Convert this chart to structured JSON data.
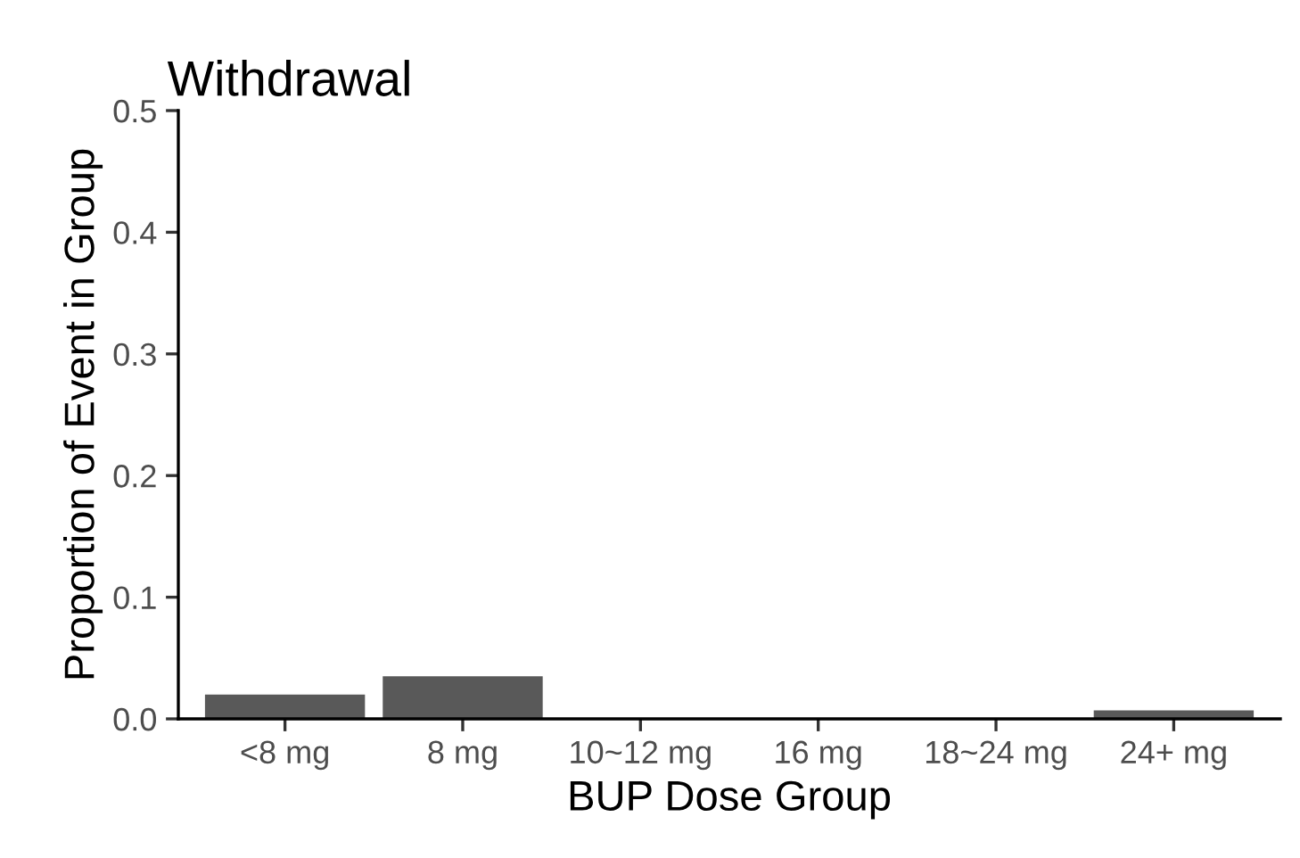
{
  "chart_data": {
    "type": "bar",
    "title": "Withdrawal",
    "xlabel": "BUP Dose Group",
    "ylabel": "Proportion of Event in Group",
    "categories": [
      "<8 mg",
      "8 mg",
      "10~12 mg",
      "16 mg",
      "18~24 mg",
      "24+ mg"
    ],
    "values": [
      0.02,
      0.035,
      0,
      0,
      0,
      0.007
    ],
    "color": "#595959",
    "ylim": [
      0,
      0.5
    ],
    "yticks": [
      {
        "value": 0,
        "label": "0.0"
      },
      0.1,
      0.2,
      0.3,
      0.4,
      0.5
    ],
    "grid": false,
    "legend": false
  }
}
